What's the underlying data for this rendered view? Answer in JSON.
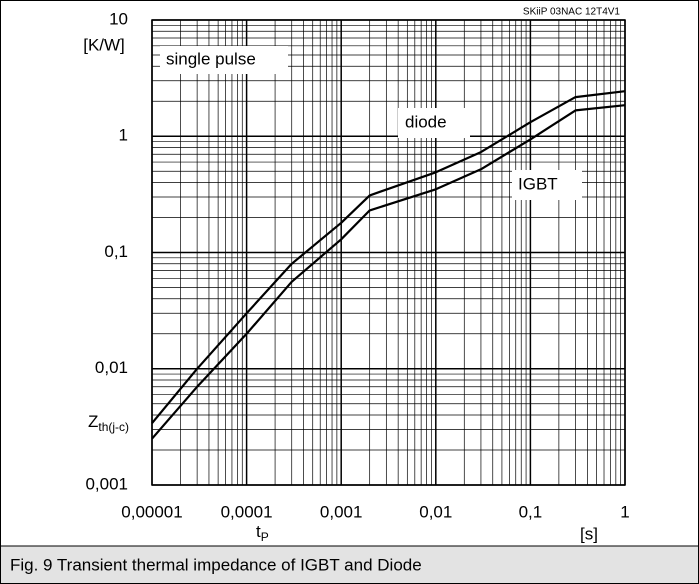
{
  "chart_data": {
    "type": "line",
    "code": "SKiiP 03NAC 12T4V1",
    "y_unit": "[K/W]",
    "y_label": {
      "text": "Z",
      "subscript": "th(j-c)"
    },
    "x_label": {
      "text": "t",
      "subscript": "P"
    },
    "x_unit": "[s]",
    "annotation": "single pulse",
    "caption": "Fig. 9 Transient thermal impedance of IGBT and Diode",
    "x_log": true,
    "y_log": true,
    "grid": true,
    "xlim": [
      1e-05,
      1
    ],
    "ylim": [
      0.001,
      10
    ],
    "xticks": [
      {
        "value": 1e-05,
        "label": "0,00001"
      },
      {
        "value": 0.0001,
        "label": "0,0001"
      },
      {
        "value": 0.001,
        "label": "0,001"
      },
      {
        "value": 0.01,
        "label": "0,01"
      },
      {
        "value": 0.1,
        "label": "0,1"
      },
      1
    ],
    "yticks": [
      {
        "value": 0.001,
        "label": "0,001"
      },
      {
        "value": 0.01,
        "label": "0,01"
      },
      {
        "value": 0.1,
        "label": "0,1"
      },
      1,
      10
    ],
    "x": [
      1e-05,
      3e-05,
      0.0001,
      0.0003,
      0.001,
      0.002,
      0.01,
      0.03,
      0.1,
      0.3,
      1
    ],
    "series": [
      {
        "name": "diode",
        "color": "#000000",
        "values": [
          0.0034,
          0.01,
          0.03,
          0.08,
          0.18,
          0.31,
          0.49,
          0.73,
          1.32,
          2.17,
          2.44
        ]
      },
      {
        "name": "IGBT",
        "color": "#000000",
        "values": [
          0.0025,
          0.007,
          0.02,
          0.056,
          0.13,
          0.23,
          0.35,
          0.52,
          0.94,
          1.67,
          1.85
        ]
      }
    ]
  }
}
